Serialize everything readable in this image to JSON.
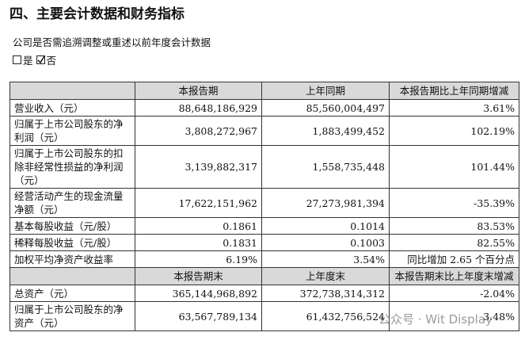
{
  "header": {
    "title": "四、主要会计数据和财务指标"
  },
  "question": "公司是否需追溯调整或重述以前年度会计数据",
  "options": [
    "是",
    "否"
  ],
  "table": {
    "header": [
      "本报告期",
      "上年同期",
      "本报告期比上年同期增减"
    ],
    "rows": [
      [
        "营业收入（元）",
        "88,648,186,929",
        "85,560,004,497",
        "3.61%"
      ],
      [
        "归属于上市公司股东的净利润（元）",
        "3,808,272,967",
        "1,883,499,452",
        "102.19%"
      ],
      [
        "归属于上市公司股东的扣除非经常性损益的净利润（元）",
        "3,139,882,317",
        "1,558,735,448",
        "101.44%"
      ],
      [
        "经营活动产生的现金流量净额（元）",
        "17,622,151,962",
        "27,273,981,394",
        "-35.39%"
      ],
      [
        "基本每股收益（元/股）",
        "0.1861",
        "0.1014",
        "83.53%"
      ],
      [
        "稀释每股收益（元/股）",
        "0.1831",
        "0.1003",
        "82.55%"
      ],
      [
        "加权平均净资产收益率",
        "6.19%",
        "3.54%",
        "同比增加 2.65 个百分点"
      ]
    ],
    "header2": [
      "本报告期末",
      "上年度末",
      "本报告期末比上年度末增减"
    ],
    "rows2": [
      [
        "总资产（元）",
        "365,144,968,892",
        "372,738,314,312",
        "-2.04%"
      ],
      [
        "归属于上市公司股东的净资产（元）",
        "63,567,789,134",
        "61,432,756,524",
        "3.48%"
      ]
    ]
  },
  "watermark": "公众号 · Wit Display"
}
